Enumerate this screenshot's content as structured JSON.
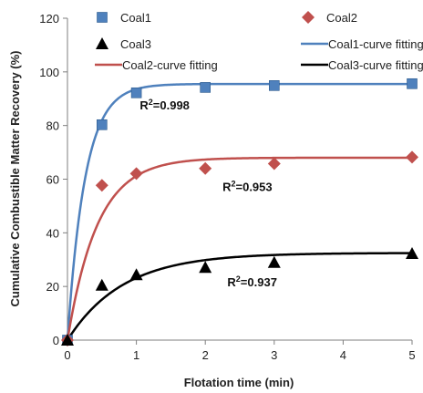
{
  "chart_data": {
    "type": "scatter",
    "xlabel": "Flotation time (min)",
    "ylabel": "Cumulative Combustible Matter Recovery (%)",
    "xlim": [
      0,
      5
    ],
    "ylim": [
      0,
      120
    ],
    "x_ticks": [
      "0",
      "1",
      "2",
      "3",
      "4",
      "5"
    ],
    "y_ticks": [
      "0",
      "20",
      "40",
      "60",
      "80",
      "100",
      "120"
    ],
    "grid": false,
    "legend_position": "top",
    "series": [
      {
        "name": "Coal1",
        "kind": "markers",
        "marker": "square",
        "color": "#4f81bd",
        "x": [
          0,
          0.5,
          1,
          2,
          3,
          5
        ],
        "y": [
          0,
          80.3,
          92.2,
          94.2,
          94.9,
          95.6
        ]
      },
      {
        "name": "Coal2",
        "kind": "markers",
        "marker": "diamond",
        "color": "#c0504d",
        "x": [
          0,
          0.5,
          1,
          2,
          3,
          5
        ],
        "y": [
          0,
          57.7,
          62.1,
          64.0,
          65.8,
          68.2
        ]
      },
      {
        "name": "Coal3",
        "kind": "markers",
        "marker": "triangle",
        "color": "#000000",
        "x": [
          0,
          0.5,
          1,
          2,
          3,
          5
        ],
        "y": [
          0,
          20.5,
          24.4,
          27.1,
          29.0,
          32.3
        ]
      },
      {
        "name": "Coal1-curve fitting",
        "kind": "fit",
        "color": "#4f81bd",
        "rmax": 95.5,
        "k": 3.9
      },
      {
        "name": "Coal2-curve fitting",
        "kind": "fit",
        "color": "#c0504d",
        "rmax": 68.0,
        "k": 2.3
      },
      {
        "name": "Coal3-curve fitting",
        "kind": "fit",
        "color": "#000000",
        "rmax": 32.5,
        "k": 1.25
      }
    ],
    "annotations": [
      {
        "base": "R",
        "sup": "2",
        "value": "=0.998",
        "x": 1.05,
        "y": 86
      },
      {
        "base": "R",
        "sup": "2",
        "value": "=0.953",
        "x": 2.25,
        "y": 55.5
      },
      {
        "base": "R",
        "sup": "2",
        "value": "=0.937",
        "x": 2.32,
        "y": 20
      }
    ]
  }
}
